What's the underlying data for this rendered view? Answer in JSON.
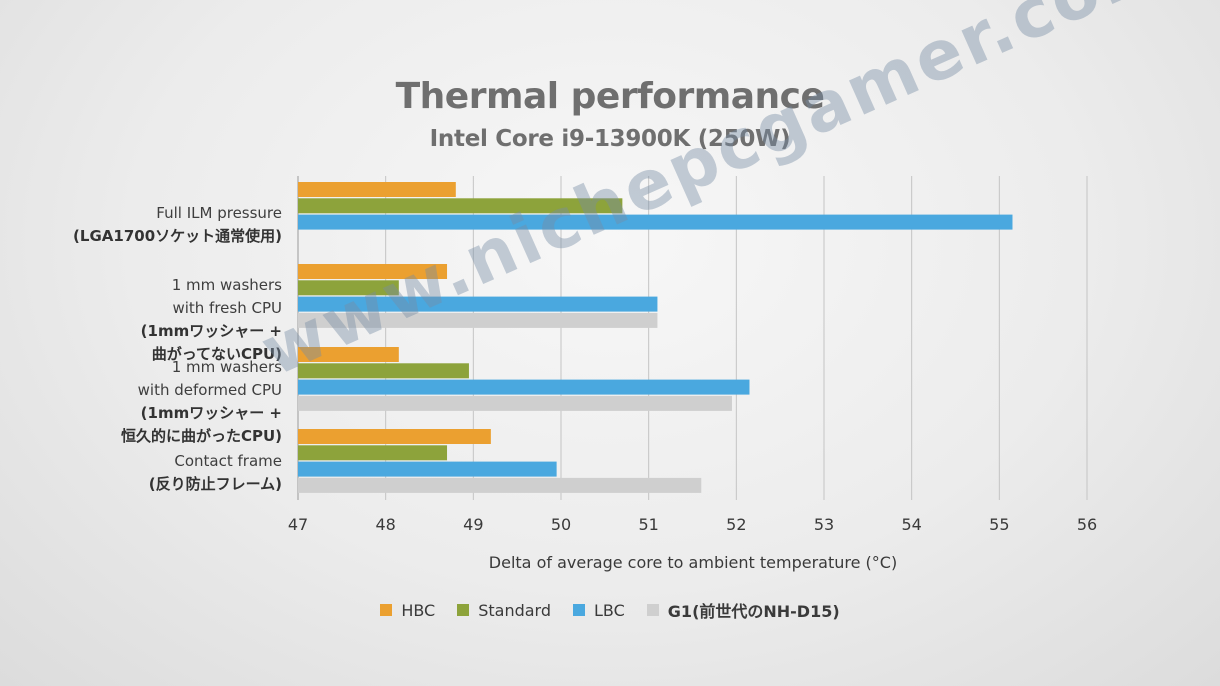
{
  "watermark": "www.nichepcgamer.com",
  "chart_data": {
    "type": "bar",
    "orientation": "horizontal",
    "title": "Thermal performance",
    "subtitle": "Intel Core i9-13900K (250W)",
    "xlabel": "Delta of average core to ambient temperature (°C)",
    "xlim": [
      47,
      56
    ],
    "xticks": [
      "47",
      "48",
      "49",
      "50",
      "51",
      "52",
      "53",
      "54",
      "55",
      "56"
    ],
    "grid": true,
    "legend_position": "bottom",
    "categories": [
      {
        "lines": [
          "Full ILM pressure"
        ],
        "jp_lines": [
          "(LGA1700ソケット通常使用)"
        ]
      },
      {
        "lines": [
          "1 mm washers",
          "with fresh CPU"
        ],
        "jp_lines": [
          "(1mmワッシャー +",
          "曲がってないCPU)"
        ]
      },
      {
        "lines": [
          "1 mm washers",
          "with deformed CPU"
        ],
        "jp_lines": [
          "(1mmワッシャー +",
          "恒久的に曲がったCPU)"
        ]
      },
      {
        "lines": [
          "Contact frame"
        ],
        "jp_lines": [
          "(反り防止フレーム)"
        ]
      }
    ],
    "series": [
      {
        "name": "HBC",
        "color": "#eba030",
        "values": [
          48.8,
          48.7,
          48.15,
          49.2
        ]
      },
      {
        "name": "Standard",
        "color": "#8da33b",
        "values": [
          50.7,
          48.15,
          48.95,
          48.7
        ]
      },
      {
        "name": "LBC",
        "color": "#4aa8df",
        "values": [
          55.15,
          51.1,
          52.15,
          49.95
        ]
      },
      {
        "name": "G1(前世代のNH-D15)",
        "color": "#cfcfcf",
        "values": [
          null,
          51.1,
          51.95,
          51.6
        ]
      }
    ]
  }
}
